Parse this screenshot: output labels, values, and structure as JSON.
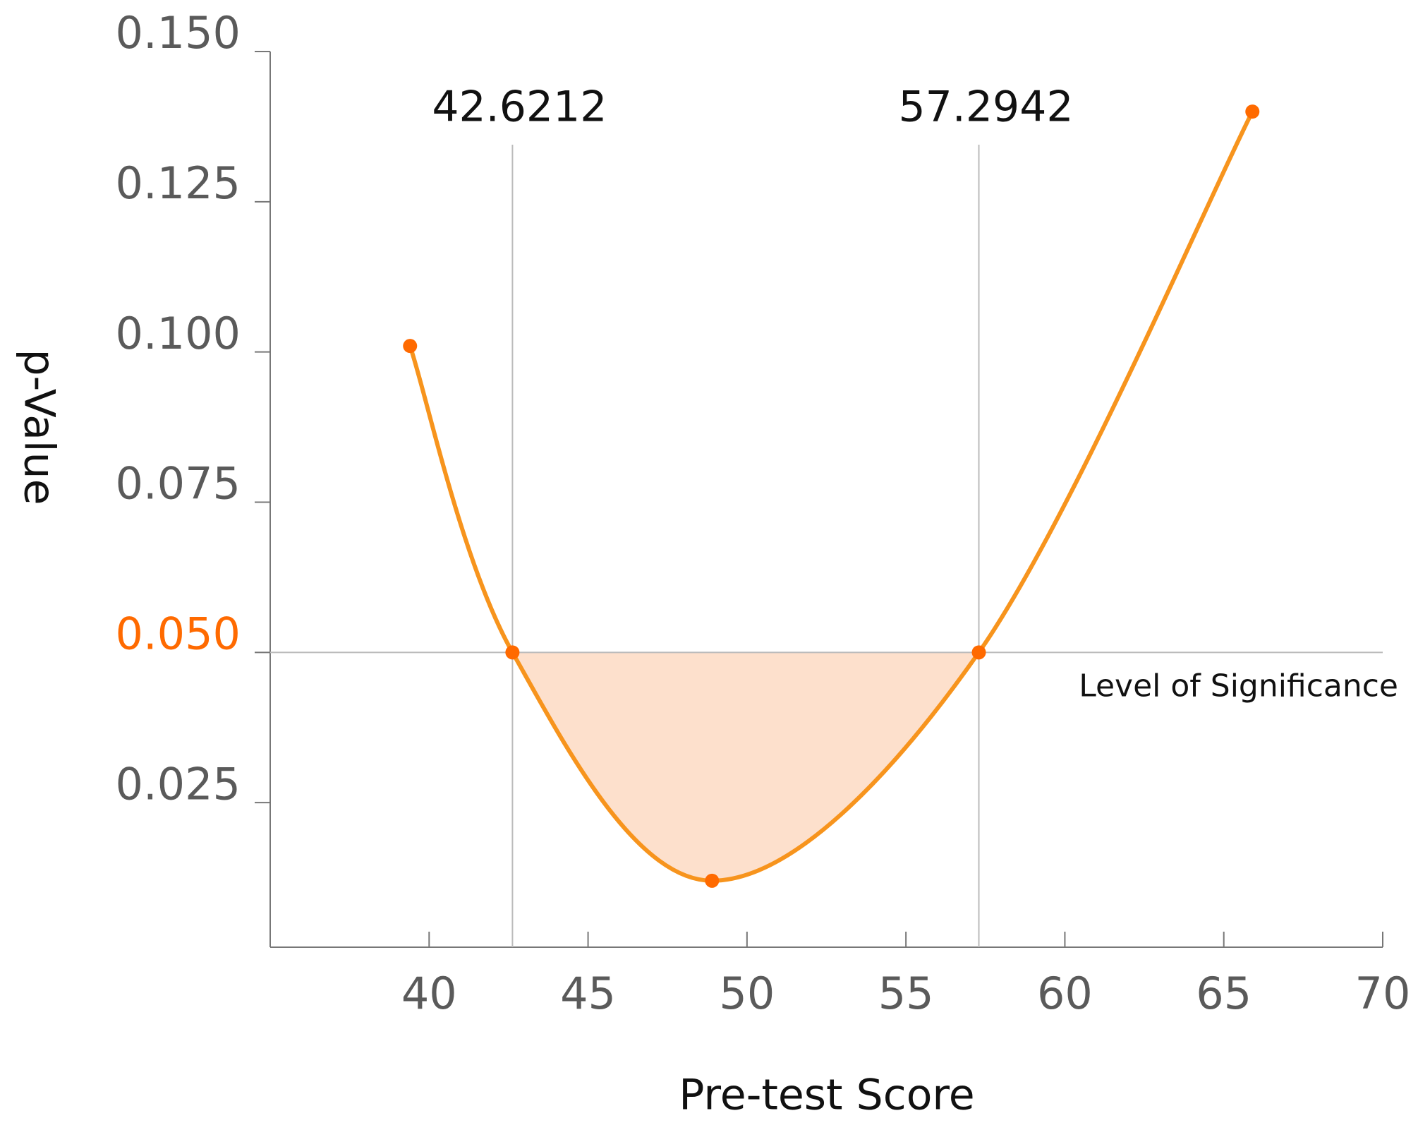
{
  "chart_data": {
    "type": "line",
    "x_label": "Pre-test Score",
    "y_label": "p-Value",
    "x": [
      39.4,
      42.6212,
      48.9,
      57.2942,
      65.9
    ],
    "values": [
      0.101,
      0.05,
      0.012,
      0.05,
      0.14
    ],
    "color": "#f7941d",
    "point_color": "#ff6a00",
    "xlim": [
      35,
      70
    ],
    "xticks": [
      40,
      45,
      50,
      55,
      60,
      65,
      70
    ],
    "ylim": [
      0,
      0.15
    ],
    "yticks": [
      {
        "value": 0.025,
        "label": "0.025"
      },
      {
        "value": 0.05,
        "label": "0.050"
      },
      {
        "value": 0.075,
        "label": "0.075"
      },
      {
        "value": 0.1,
        "label": "0.100"
      },
      {
        "value": 0.125,
        "label": "0.125"
      },
      {
        "value": 0.15,
        "label": "0.150"
      }
    ],
    "vlines": [
      42.6212,
      57.2942
    ],
    "significance": {
      "value": 0.05,
      "label": "Level of Significance",
      "color": "#ff6a00",
      "fill": "#fde0cc"
    }
  }
}
